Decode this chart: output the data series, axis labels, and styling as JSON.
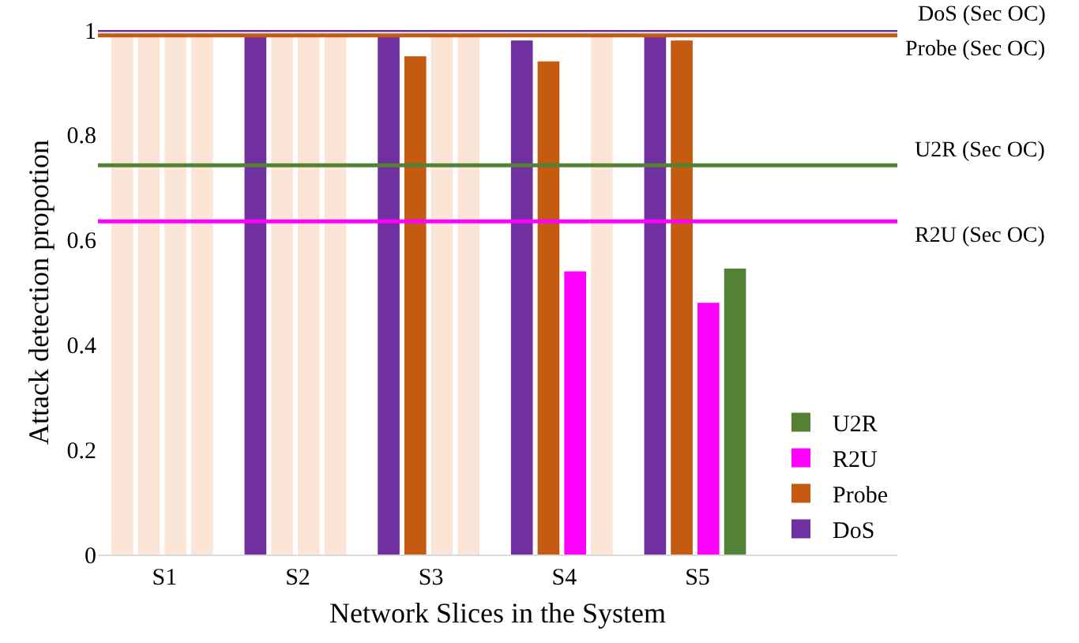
{
  "chart_data": {
    "type": "bar",
    "xlabel": "Network Slices in the System",
    "ylabel": "Attack detection propotion",
    "categories": [
      "S1",
      "S2",
      "S3",
      "S4",
      "S5",
      null
    ],
    "series": [
      {
        "color": "#fbe5d6",
        "values": [
          0.99,
          null,
          null,
          null,
          null,
          null
        ]
      },
      {
        "color": "#fbe5d6",
        "values": [
          0.99,
          0.99,
          null,
          null,
          null,
          null
        ]
      },
      {
        "color": "#fbe5d6",
        "values": [
          0.99,
          0.99,
          0.99,
          null,
          null,
          null
        ]
      },
      {
        "color": "#fbe5d6",
        "values": [
          0.99,
          0.99,
          0.99,
          0.99,
          null,
          null
        ]
      },
      {
        "name": "DoS",
        "color": "#7030a0",
        "values": [
          null,
          0.99,
          0.99,
          0.98,
          0.99,
          null
        ]
      },
      {
        "name": "Probe",
        "color": "#c55a11",
        "values": [
          null,
          null,
          0.95,
          0.94,
          0.98,
          null
        ]
      },
      {
        "name": "R2U",
        "color": "#ff00ff",
        "values": [
          null,
          null,
          null,
          0.54,
          0.48,
          null
        ]
      },
      {
        "name": "U2R",
        "color": "#548235",
        "values": [
          null,
          null,
          null,
          null,
          0.545,
          null
        ]
      }
    ],
    "ylim": [
      0,
      1.0
    ],
    "yticks": [
      0,
      0.2,
      0.4,
      0.6,
      0.8,
      1
    ],
    "ref_lines": [
      {
        "axis": "y",
        "value": 1.0,
        "label": "DoS (Sec OC)",
        "color": "#7030a0"
      },
      {
        "axis": "y",
        "value": 0.99,
        "label": "Probe (Sec OC)",
        "color": "#c55a11"
      },
      {
        "axis": "y",
        "value": 0.742,
        "label": "U2R (Sec OC)",
        "color": "#548235"
      },
      {
        "axis": "y",
        "value": 0.635,
        "label": "R2U (Sec OC)",
        "color": "#ff00ff"
      }
    ],
    "legend": "bottom right"
  }
}
